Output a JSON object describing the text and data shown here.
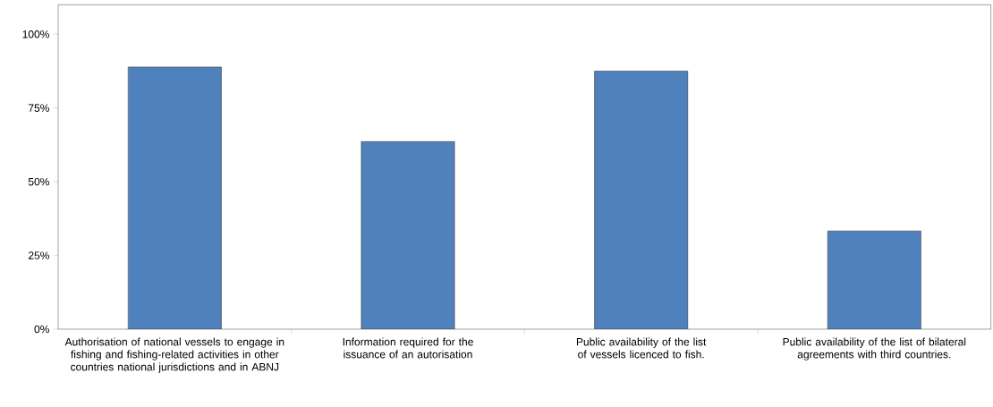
{
  "chart_data": {
    "type": "bar",
    "categories": [
      "Authorisation of national vessels to engage in fishing and fishing-related activities in other countries national jurisdictions and in ABNJ",
      "Information required for the issuance of an autorisation",
      "Public availability of the list of vessels licenced to fish.",
      "Public availability of the list of bilateral agreements with third countries."
    ],
    "values": [
      88.9,
      63.6,
      87.5,
      33.3
    ],
    "color": "#4f81bd",
    "ylim": [
      0,
      110
    ],
    "yticks": [
      {
        "value": 0,
        "label": "0%"
      },
      {
        "value": 25,
        "label": "25%"
      },
      {
        "value": 50,
        "label": "50%"
      },
      {
        "value": 75,
        "label": "75%"
      },
      {
        "value": 100,
        "label": "100%"
      }
    ]
  }
}
